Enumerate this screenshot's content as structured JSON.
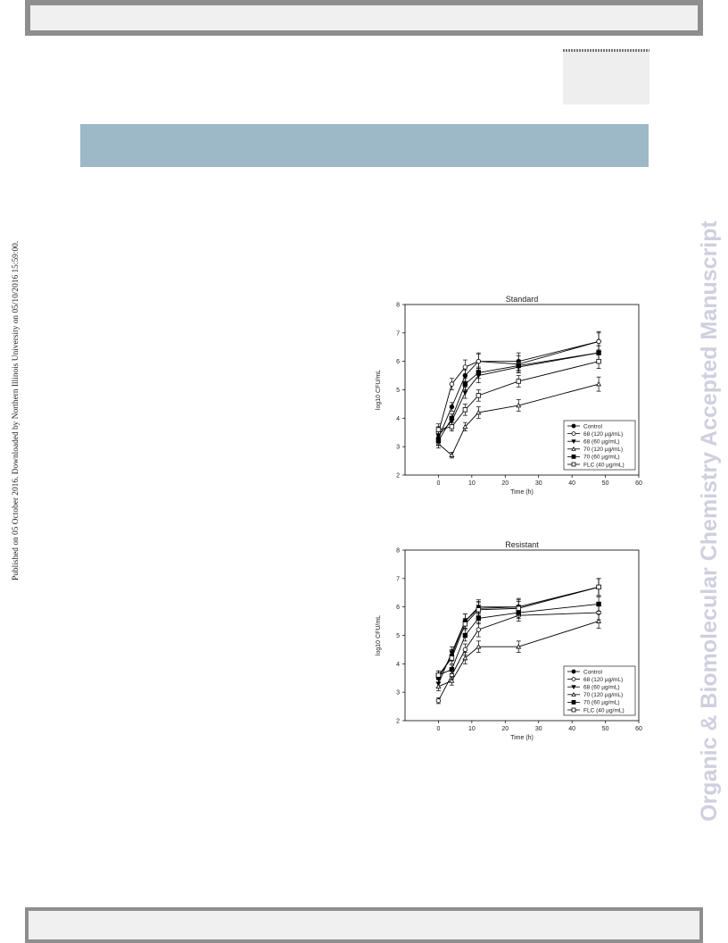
{
  "side_text": {
    "published": "Published on 05 October 2016. Downloaded by Northern Illinois University on 05/10/2016 15:59:00.",
    "journal": "Organic & Biomolecular Chemistry Accepted Manuscript"
  },
  "chart_data": [
    {
      "type": "line",
      "title": "Standard",
      "xlabel": "Time (h)",
      "ylabel": "log10 CFU/mL",
      "xlim": [
        -10,
        60
      ],
      "ylim": [
        2,
        8
      ],
      "xticks": [
        0,
        10,
        20,
        30,
        40,
        50,
        60
      ],
      "yticks": [
        2,
        3,
        4,
        5,
        6,
        7,
        8
      ],
      "x": [
        0,
        4,
        8,
        12,
        24,
        48
      ],
      "legend_position": "bottom-right",
      "series": [
        {
          "name": "Control",
          "marker": "circle-filled",
          "values": [
            3.3,
            4.4,
            5.5,
            6.0,
            6.0,
            6.7
          ],
          "err": [
            0.15,
            0.15,
            0.2,
            0.3,
            0.3,
            0.35
          ]
        },
        {
          "name": "68 (120 µg/mL)",
          "marker": "circle-open",
          "values": [
            3.5,
            5.2,
            5.8,
            6.0,
            5.9,
            6.7
          ],
          "err": [
            0.2,
            0.2,
            0.25,
            0.25,
            0.3,
            0.3
          ]
        },
        {
          "name": "68 (60 µg/mL)",
          "marker": "triangle-down-filled",
          "values": [
            3.4,
            3.9,
            4.9,
            5.5,
            5.8,
            6.3
          ],
          "err": [
            0.15,
            0.15,
            0.2,
            0.25,
            0.2,
            0.25
          ]
        },
        {
          "name": "70 (120 µg/mL)",
          "marker": "triangle-up-open",
          "values": [
            3.1,
            2.7,
            3.7,
            4.2,
            4.45,
            5.2
          ],
          "err": [
            0.15,
            0.1,
            0.15,
            0.2,
            0.2,
            0.25
          ]
        },
        {
          "name": "70 (60 µg/mL)",
          "marker": "square-filled",
          "values": [
            3.2,
            4.0,
            5.2,
            5.6,
            5.85,
            6.3
          ],
          "err": [
            0.15,
            0.15,
            0.2,
            0.2,
            0.2,
            0.25
          ]
        },
        {
          "name": "FLC (40 µg/mL)",
          "marker": "square-open",
          "values": [
            3.6,
            3.7,
            4.3,
            4.8,
            5.3,
            6.0
          ],
          "err": [
            0.2,
            0.15,
            0.2,
            0.2,
            0.2,
            0.25
          ]
        }
      ]
    },
    {
      "type": "line",
      "title": "Resistant",
      "xlabel": "Time (h)",
      "ylabel": "log10 CFU/mL",
      "xlim": [
        -10,
        60
      ],
      "ylim": [
        2,
        8
      ],
      "xticks": [
        0,
        10,
        20,
        30,
        40,
        50,
        60
      ],
      "yticks": [
        2,
        3,
        4,
        5,
        6,
        7,
        8
      ],
      "x": [
        0,
        4,
        8,
        12,
        24,
        48
      ],
      "legend_position": "bottom-right",
      "series": [
        {
          "name": "Control",
          "marker": "circle-filled",
          "values": [
            3.5,
            4.3,
            5.5,
            5.95,
            6.0,
            6.7
          ],
          "err": [
            0.15,
            0.2,
            0.25,
            0.25,
            0.3,
            0.3
          ]
        },
        {
          "name": "68 (120 µg/mL)",
          "marker": "circle-open",
          "values": [
            2.7,
            3.6,
            4.5,
            5.2,
            5.7,
            5.8
          ],
          "err": [
            0.1,
            0.15,
            0.2,
            0.25,
            0.2,
            0.25
          ]
        },
        {
          "name": "68 (60 µg/mL)",
          "marker": "triangle-down-filled",
          "values": [
            3.3,
            4.4,
            5.5,
            6.0,
            6.0,
            6.7
          ],
          "err": [
            0.15,
            0.2,
            0.25,
            0.25,
            0.25,
            0.3
          ]
        },
        {
          "name": "70 (120 µg/mL)",
          "marker": "triangle-up-open",
          "values": [
            3.2,
            3.4,
            4.2,
            4.6,
            4.6,
            5.5
          ],
          "err": [
            0.15,
            0.15,
            0.2,
            0.2,
            0.2,
            0.25
          ]
        },
        {
          "name": "70 (60 µg/mL)",
          "marker": "square-filled",
          "values": [
            3.6,
            3.8,
            5.0,
            5.6,
            5.8,
            6.1
          ],
          "err": [
            0.15,
            0.15,
            0.2,
            0.2,
            0.2,
            0.25
          ]
        },
        {
          "name": "FLC (40 µg/mL)",
          "marker": "square-open",
          "values": [
            3.6,
            4.2,
            5.4,
            5.9,
            5.95,
            6.7
          ],
          "err": [
            0.15,
            0.2,
            0.2,
            0.25,
            0.25,
            0.3
          ]
        }
      ]
    }
  ]
}
